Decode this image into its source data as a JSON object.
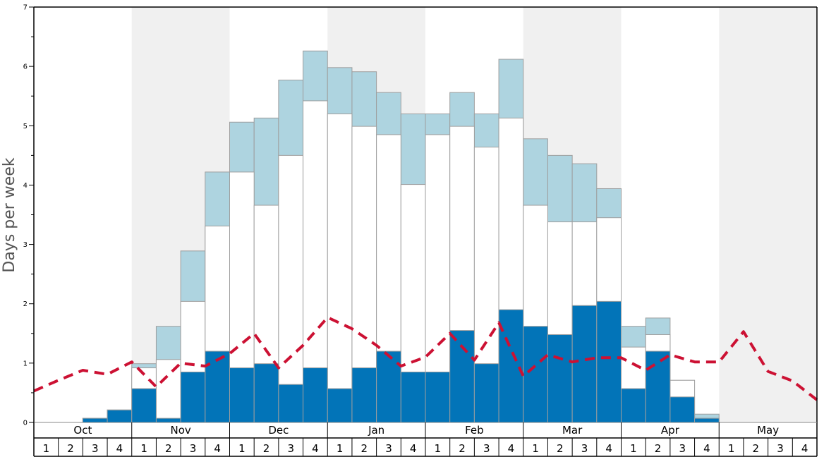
{
  "chart_data": {
    "type": "bar",
    "ylabel": "Days per week",
    "ylim": [
      0,
      7
    ],
    "yticks": [
      "0",
      "1",
      "2",
      "3",
      "4",
      "5",
      "6",
      "7"
    ],
    "months": [
      "Oct",
      "Nov",
      "Dec",
      "Jan",
      "Feb",
      "Mar",
      "Apr",
      "May"
    ],
    "week_labels": [
      "1",
      "2",
      "3",
      "4"
    ],
    "colors": {
      "dark": "#0274b8",
      "white": "#ffffff",
      "light": "#aed4e0",
      "band": "#f0f0f0",
      "line": "#cc1133",
      "bar_edge": "#9e9e9e"
    },
    "series": [
      {
        "values": [
          0,
          0,
          0.07,
          0.21,
          0.57,
          0.07,
          0.85,
          1.2,
          0.92,
          0.99,
          0.64,
          0.92,
          0.57,
          0.92,
          1.2,
          0.85,
          0.85,
          1.55,
          0.99,
          1.9,
          1.62,
          1.48,
          1.97,
          2.04,
          0.57,
          1.2,
          0.43,
          0.07,
          0,
          0,
          0,
          0
        ]
      },
      {
        "values": [
          0,
          0,
          0.07,
          0.21,
          0.92,
          1.06,
          2.04,
          3.31,
          4.22,
          3.66,
          4.5,
          5.42,
          5.2,
          4.99,
          4.85,
          4.01,
          4.85,
          4.99,
          4.64,
          5.13,
          3.66,
          3.38,
          3.38,
          3.45,
          1.27,
          1.48,
          0.71,
          0.07,
          0,
          0,
          0,
          0
        ]
      },
      {
        "values": [
          0,
          0,
          0.07,
          0.21,
          0.99,
          1.62,
          2.89,
          4.22,
          5.06,
          5.13,
          5.77,
          6.26,
          5.98,
          5.91,
          5.56,
          5.2,
          5.2,
          5.56,
          5.2,
          6.12,
          4.78,
          4.5,
          4.36,
          3.94,
          1.62,
          1.76,
          0.71,
          0.14,
          0,
          0,
          0,
          0
        ]
      },
      {
        "type": "line",
        "values": [
          0.53,
          0.71,
          0.88,
          0.81,
          1.02,
          0.6,
          1.0,
          0.95,
          1.16,
          1.5,
          0.92,
          1.3,
          1.77,
          1.58,
          1.3,
          0.95,
          1.1,
          1.5,
          1.05,
          1.68,
          0.78,
          1.14,
          1.02,
          1.09,
          1.09,
          0.88,
          1.14,
          1.02,
          1.02,
          1.53,
          0.86,
          0.7,
          0.38
        ]
      }
    ]
  }
}
